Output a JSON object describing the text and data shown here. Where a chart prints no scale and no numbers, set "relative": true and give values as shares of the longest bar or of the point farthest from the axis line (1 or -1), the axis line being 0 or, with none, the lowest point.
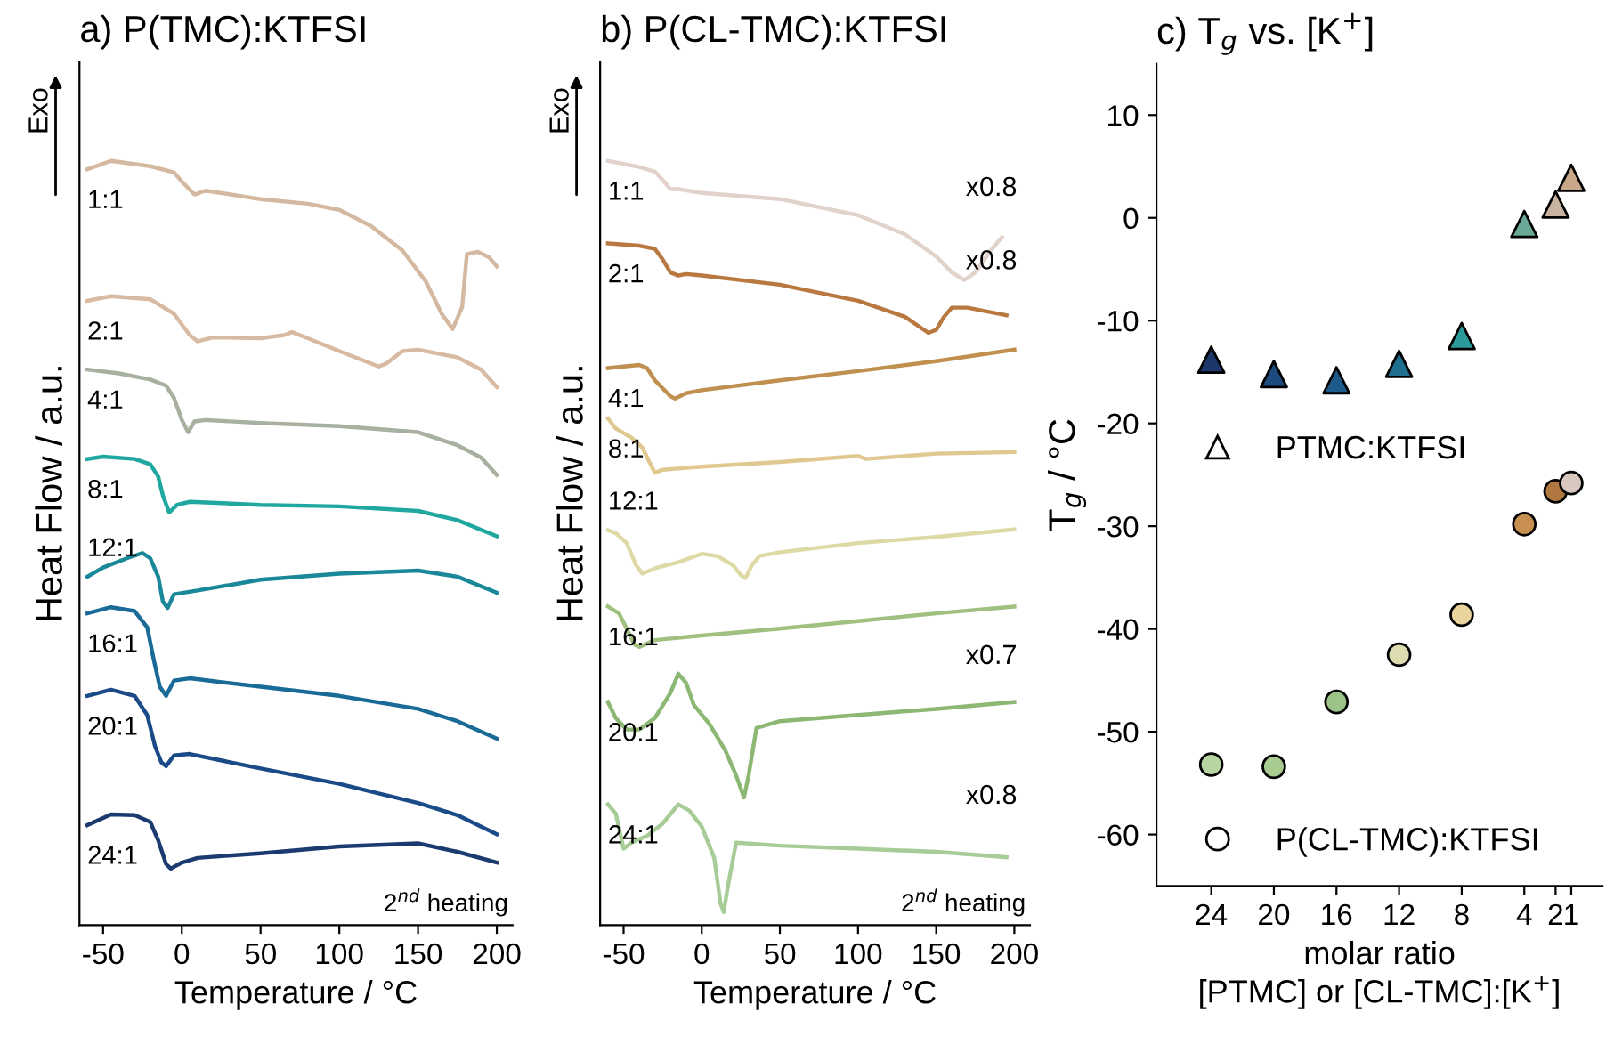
{
  "chart_data": [
    {
      "type": "line",
      "title": "a) P(TMC):KTFSI",
      "xlabel": "Temperature / °C",
      "ylabel": "Heat Flow / a.u.",
      "relative": true,
      "xlim": [
        -65,
        210
      ],
      "xticks": [
        -50,
        0,
        50,
        100,
        150,
        200
      ],
      "annotations": [
        "2$^{nd}$ heating",
        "Exo"
      ],
      "series": [
        {
          "name": "1:1",
          "color": "#d4b8a0",
          "x": [
            -60,
            -45,
            -20,
            -5,
            0,
            8,
            15,
            50,
            80,
            100,
            120,
            140,
            155,
            165,
            172,
            178,
            181,
            188,
            195,
            200
          ],
          "values": [
            0.989,
            1.0,
            0.993,
            0.985,
            0.973,
            0.956,
            0.961,
            0.95,
            0.944,
            0.936,
            0.915,
            0.883,
            0.842,
            0.8,
            0.78,
            0.809,
            0.878,
            0.881,
            0.874,
            0.862
          ]
        },
        {
          "name": "2:1",
          "color": "#d8baa2",
          "x": [
            -60,
            -45,
            -20,
            -5,
            5,
            10,
            20,
            50,
            65,
            70,
            80,
            100,
            125,
            130,
            140,
            150,
            175,
            190,
            200
          ],
          "values": [
            0.817,
            0.823,
            0.819,
            0.8,
            0.772,
            0.764,
            0.769,
            0.768,
            0.772,
            0.776,
            0.768,
            0.751,
            0.731,
            0.735,
            0.751,
            0.753,
            0.743,
            0.727,
            0.704
          ]
        },
        {
          "name": "4:1",
          "color": "#a8b0a0",
          "x": [
            -60,
            -40,
            -20,
            -10,
            -5,
            0,
            4,
            8,
            15,
            50,
            100,
            150,
            175,
            190,
            200
          ],
          "values": [
            0.727,
            0.722,
            0.714,
            0.706,
            0.69,
            0.661,
            0.645,
            0.659,
            0.661,
            0.657,
            0.653,
            0.645,
            0.628,
            0.612,
            0.589
          ]
        },
        {
          "name": "8:1",
          "color": "#20a8a0",
          "x": [
            -60,
            -50,
            -30,
            -20,
            -15,
            -12,
            -8,
            -3,
            5,
            50,
            100,
            150,
            175,
            200
          ],
          "values": [
            0.61,
            0.613,
            0.61,
            0.603,
            0.587,
            0.562,
            0.54,
            0.55,
            0.554,
            0.55,
            0.548,
            0.542,
            0.53,
            0.509
          ]
        },
        {
          "name": "12:1",
          "color": "#1a8898",
          "x": [
            -60,
            -50,
            -35,
            -25,
            -20,
            -15,
            -12,
            -9,
            -5,
            10,
            50,
            100,
            150,
            175,
            200
          ],
          "values": [
            0.456,
            0.468,
            0.48,
            0.487,
            0.48,
            0.456,
            0.423,
            0.415,
            0.433,
            0.438,
            0.452,
            0.46,
            0.464,
            0.456,
            0.435
          ]
        },
        {
          "name": "16:1",
          "color": "#1a6a98",
          "x": [
            -60,
            -45,
            -30,
            -22,
            -18,
            -14,
            -10,
            -5,
            5,
            50,
            100,
            150,
            175,
            200
          ],
          "values": [
            0.408,
            0.416,
            0.411,
            0.39,
            0.349,
            0.312,
            0.3,
            0.32,
            0.323,
            0.312,
            0.3,
            0.283,
            0.267,
            0.244
          ]
        },
        {
          "name": "20:1",
          "color": "#1a4a88",
          "x": [
            -60,
            -45,
            -30,
            -22,
            -17,
            -13,
            -10,
            -5,
            5,
            50,
            100,
            150,
            175,
            200
          ],
          "values": [
            0.3,
            0.308,
            0.3,
            0.275,
            0.234,
            0.213,
            0.208,
            0.222,
            0.224,
            0.205,
            0.185,
            0.16,
            0.144,
            0.119
          ]
        },
        {
          "name": "24:1",
          "color": "#1a3a70",
          "x": [
            -60,
            -45,
            -30,
            -20,
            -15,
            -10,
            -7,
            0,
            10,
            50,
            100,
            150,
            175,
            200
          ],
          "values": [
            0.131,
            0.145,
            0.144,
            0.135,
            0.111,
            0.08,
            0.074,
            0.082,
            0.088,
            0.094,
            0.103,
            0.107,
            0.096,
            0.082
          ]
        }
      ]
    },
    {
      "type": "line",
      "title": "b) P(CL-TMC):KTFSI",
      "xlabel": "Temperature / °C",
      "ylabel": "Heat Flow / a.u.",
      "relative": true,
      "xlim": [
        -65,
        210
      ],
      "xticks": [
        -50,
        0,
        50,
        100,
        150,
        200
      ],
      "annotations": [
        "2$^{nd}$ heating",
        "Exo",
        "x0.8",
        "x0.8",
        "x0.7",
        "x0.8"
      ],
      "series": [
        {
          "name": "1:1",
          "color": "#e2d2cc",
          "x": [
            -60,
            -40,
            -30,
            -25,
            -20,
            -15,
            0,
            50,
            100,
            130,
            150,
            160,
            168,
            175,
            185,
            192
          ],
          "values": [
            1.0,
            0.992,
            0.986,
            0.975,
            0.963,
            0.963,
            0.958,
            0.95,
            0.929,
            0.904,
            0.875,
            0.854,
            0.844,
            0.854,
            0.883,
            0.9
          ]
        },
        {
          "name": "2:1",
          "color": "#b87840",
          "x": [
            -60,
            -40,
            -30,
            -25,
            -20,
            -15,
            -10,
            0,
            50,
            100,
            130,
            145,
            150,
            155,
            160,
            170,
            195
          ],
          "values": [
            0.892,
            0.889,
            0.885,
            0.871,
            0.854,
            0.85,
            0.852,
            0.85,
            0.838,
            0.817,
            0.796,
            0.775,
            0.779,
            0.796,
            0.808,
            0.808,
            0.798
          ]
        },
        {
          "name": "4:1",
          "color": "#c09050",
          "x": [
            -60,
            -50,
            -40,
            -35,
            -30,
            -20,
            -17,
            -10,
            0,
            50,
            100,
            150,
            200
          ],
          "values": [
            0.729,
            0.731,
            0.733,
            0.729,
            0.713,
            0.692,
            0.689,
            0.696,
            0.7,
            0.713,
            0.725,
            0.738,
            0.753
          ]
        },
        {
          "name": "8:1",
          "color": "#e0c890",
          "x": [
            -60,
            -55,
            -45,
            -38,
            -33,
            -30,
            -25,
            0,
            50,
            100,
            105,
            150,
            200
          ],
          "values": [
            0.663,
            0.65,
            0.638,
            0.625,
            0.604,
            0.592,
            0.596,
            0.6,
            0.606,
            0.614,
            0.61,
            0.617,
            0.619
          ]
        },
        {
          "name": "12:1",
          "color": "#dedaa6",
          "x": [
            -60,
            -55,
            -48,
            -42,
            -38,
            -30,
            -15,
            0,
            10,
            20,
            25,
            28,
            32,
            37,
            50,
            100,
            150,
            200
          ],
          "values": [
            0.517,
            0.513,
            0.5,
            0.471,
            0.46,
            0.467,
            0.475,
            0.486,
            0.483,
            0.471,
            0.458,
            0.454,
            0.471,
            0.483,
            0.488,
            0.5,
            0.508,
            0.518
          ]
        },
        {
          "name": "16:1",
          "color": "#a0c080",
          "x": [
            -60,
            -53,
            -48,
            -43,
            -40,
            -30,
            0,
            50,
            100,
            150,
            200
          ],
          "values": [
            0.417,
            0.408,
            0.388,
            0.367,
            0.364,
            0.373,
            0.379,
            0.388,
            0.398,
            0.408,
            0.417
          ]
        },
        {
          "name": "20:1",
          "color": "#8cb874",
          "x": [
            -60,
            -55,
            -48,
            -40,
            -30,
            -20,
            -15,
            -10,
            -5,
            5,
            15,
            22,
            27,
            30,
            35,
            50,
            100,
            150,
            200
          ],
          "values": [
            0.292,
            0.271,
            0.256,
            0.256,
            0.271,
            0.304,
            0.329,
            0.317,
            0.288,
            0.263,
            0.229,
            0.196,
            0.167,
            0.196,
            0.258,
            0.267,
            0.275,
            0.283,
            0.292
          ]
        },
        {
          "name": "24:1",
          "color": "#a8cc98",
          "x": [
            -60,
            -55,
            -50,
            -45,
            -35,
            -25,
            -15,
            -8,
            0,
            8,
            12,
            14,
            17,
            22,
            50,
            100,
            150,
            195
          ],
          "values": [
            0.158,
            0.146,
            0.1,
            0.108,
            0.117,
            0.133,
            0.158,
            0.15,
            0.129,
            0.088,
            0.029,
            0.017,
            0.054,
            0.108,
            0.104,
            0.1,
            0.096,
            0.089
          ]
        }
      ]
    },
    {
      "type": "scatter",
      "title": "c) T$_{g}$ vs. [K$^{+}$]",
      "xlabel": "molar ratio\n[PTMC] or [CL-TMC]:[K$^{+}$]",
      "ylabel": "T$_{g}$ / °C",
      "xlim": [
        27.5,
        -1
      ],
      "xticks": [
        24,
        20,
        16,
        12,
        8,
        4,
        2,
        1
      ],
      "ylim": [
        -65,
        15
      ],
      "yticks": [
        -60,
        -50,
        -40,
        -30,
        -20,
        -10,
        0,
        10
      ],
      "legend": "left",
      "series": [
        {
          "name": "PTMC:KTFSI",
          "marker": "triangle",
          "x": [
            24,
            20,
            16,
            12,
            8,
            4,
            2,
            1
          ],
          "values": [
            -13.8,
            -15.2,
            -15.8,
            -14.2,
            -11.5,
            -0.6,
            1.3,
            3.9
          ],
          "colors": [
            "#1c3868",
            "#1d4a7f",
            "#1d5a8a",
            "#1e6e8e",
            "#2a9a9a",
            "#6aa898",
            "#c8b4a0",
            "#c8a888"
          ]
        },
        {
          "name": "P(CL-TMC):KTFSI",
          "marker": "circle",
          "x": [
            24,
            20,
            16,
            12,
            8,
            4,
            2,
            1
          ],
          "values": [
            -53.2,
            -53.4,
            -47.1,
            -42.5,
            -38.6,
            -29.8,
            -26.6,
            -25.8
          ],
          "colors": [
            "#b8d4a0",
            "#a8cc90",
            "#9cc488",
            "#dcdcb0",
            "#e8d49c",
            "#c89050",
            "#b07840",
            "#d8c8c0"
          ]
        }
      ]
    }
  ]
}
